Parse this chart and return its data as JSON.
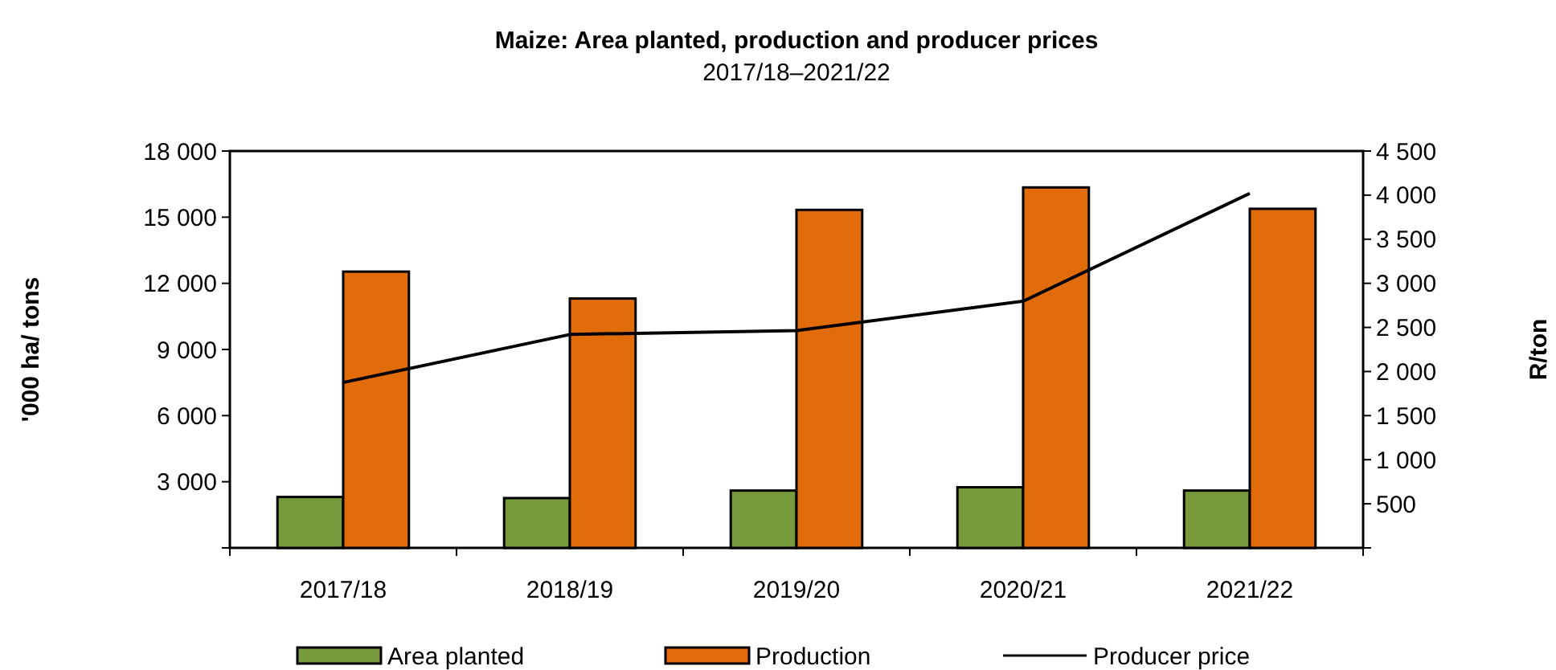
{
  "chart_data": {
    "type": "bar",
    "title": "Maize: Area planted, production and producer prices",
    "subtitle": "2017/18–2021/22",
    "ylabel": "'000 ha/ tons",
    "y2label": "R/ton",
    "categories": [
      "2017/18",
      "2018/19",
      "2019/20",
      "2020/21",
      "2021/22"
    ],
    "series": [
      {
        "name": "Area planted",
        "color": "#779a3c",
        "values": [
          2310,
          2260,
          2600,
          2750,
          2600
        ]
      },
      {
        "name": "Production",
        "color": "#e36c0a",
        "values": [
          12530,
          11310,
          15330,
          16350,
          15380
        ]
      },
      {
        "name": "Producer price",
        "type": "line",
        "axis": "y2",
        "color": "#000000",
        "values": [
          1875,
          2420,
          2465,
          2797,
          4020
        ]
      }
    ],
    "ylim": [
      0,
      18000
    ],
    "yticks": [
      {
        "value": 0,
        "label": null
      },
      {
        "value": 3000,
        "label": "3 000"
      },
      {
        "value": 6000,
        "label": "6 000"
      },
      {
        "value": 9000,
        "label": "9 000"
      },
      {
        "value": 12000,
        "label": "12 000"
      },
      {
        "value": 15000,
        "label": "15 000"
      },
      {
        "value": 18000,
        "label": "18 000"
      }
    ],
    "y2lim": [
      0,
      4500
    ],
    "y2ticks": [
      {
        "value": 0,
        "label": null
      },
      500,
      {
        "value": 1000,
        "label": "1 000"
      },
      {
        "value": 1500,
        "label": "1 500"
      },
      {
        "value": 2000,
        "label": "2 000"
      },
      {
        "value": 2500,
        "label": "2 500"
      },
      {
        "value": 3000,
        "label": "3 000"
      },
      {
        "value": 3500,
        "label": "3 500"
      },
      {
        "value": 4000,
        "label": "4 000"
      },
      {
        "value": 4500,
        "label": "4 500"
      }
    ],
    "legend": "bottom",
    "marker": "none"
  }
}
